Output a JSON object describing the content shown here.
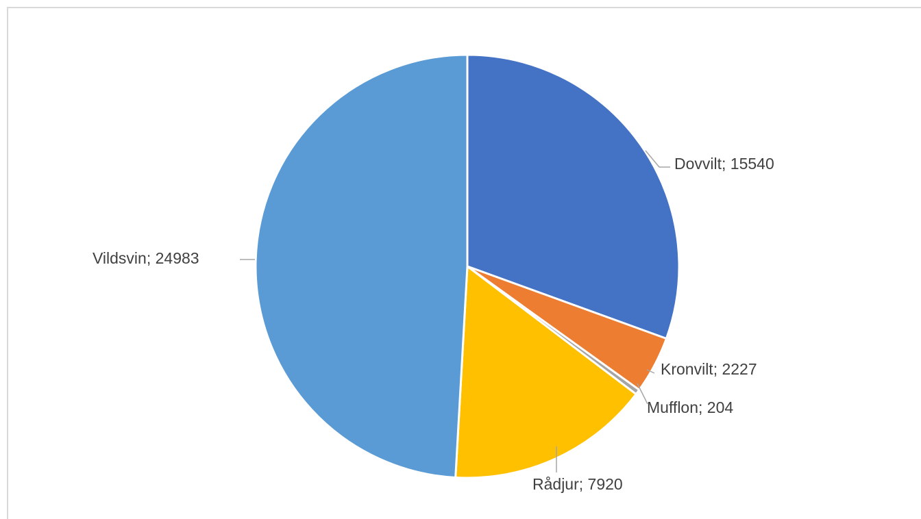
{
  "chart_data": {
    "type": "pie",
    "title": "",
    "label_separator": "; ",
    "start_angle_deg": 0,
    "direction": "clockwise",
    "slices": [
      {
        "label": "Dovvilt",
        "value": 15540,
        "color": "#4472c4"
      },
      {
        "label": "Kronvilt",
        "value": 2227,
        "color": "#ed7d31"
      },
      {
        "label": "Mufflon",
        "value": 204,
        "color": "#a5a5a5"
      },
      {
        "label": "Rådjur",
        "value": 7920,
        "color": "#ffc000"
      },
      {
        "label": "Vildsvin",
        "value": 24983,
        "color": "#5b9bd5"
      }
    ],
    "legend": "none",
    "data_labels": "outside-end with leader lines"
  }
}
